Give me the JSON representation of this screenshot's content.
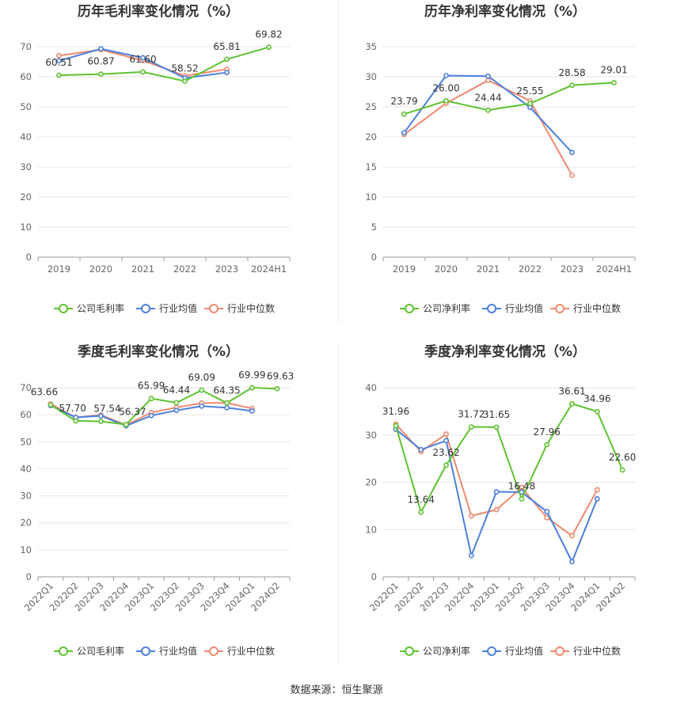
{
  "source": "数据来源：恒生聚源",
  "legend_colors": [
    "#5ec230",
    "#4d7fdc",
    "#f0896e"
  ],
  "chart_data": [
    {
      "type": "line",
      "title": "历年毛利率变化情况（%）",
      "categories": [
        "2019",
        "2020",
        "2021",
        "2022",
        "2023",
        "2024H1"
      ],
      "ylim": [
        0,
        70
      ],
      "yticks": [
        "0",
        "10",
        "20",
        "30",
        "40",
        "50",
        "60",
        "70"
      ],
      "grid": true,
      "legend_position": "bottom",
      "series": [
        {
          "name": "公司毛利率",
          "color": "#5ec230",
          "values": [
            60.51,
            60.87,
            61.6,
            58.52,
            65.81,
            69.82
          ],
          "labels": [
            "60.51",
            "60.87",
            "61.60",
            "58.52",
            "65.81",
            "69.82"
          ]
        },
        {
          "name": "行业均值",
          "color": "#4d7fdc",
          "values": [
            65.3,
            69.3,
            66.3,
            59.6,
            61.4,
            null
          ],
          "labels": []
        },
        {
          "name": "行业中位数",
          "color": "#f0896e",
          "values": [
            67.0,
            69.0,
            65.4,
            60.3,
            62.5,
            null
          ],
          "labels": []
        }
      ]
    },
    {
      "type": "line",
      "title": "历年净利率变化情况（%）",
      "categories": [
        "2019",
        "2020",
        "2021",
        "2022",
        "2023",
        "2024H1"
      ],
      "ylim": [
        0,
        35
      ],
      "yticks": [
        "0",
        "5",
        "10",
        "15",
        "20",
        "25",
        "30",
        "35"
      ],
      "grid": true,
      "legend_position": "bottom",
      "series": [
        {
          "name": "公司净利率",
          "color": "#5ec230",
          "values": [
            23.79,
            26.0,
            24.44,
            25.55,
            28.58,
            29.01
          ],
          "labels": [
            "23.79",
            "26.00",
            "24.44",
            "25.55",
            "28.58",
            "29.01"
          ]
        },
        {
          "name": "行业均值",
          "color": "#4d7fdc",
          "values": [
            20.7,
            30.2,
            30.1,
            24.9,
            17.4,
            null
          ],
          "labels": []
        },
        {
          "name": "行业中位数",
          "color": "#f0896e",
          "values": [
            20.4,
            25.6,
            29.4,
            26.0,
            13.6,
            null
          ],
          "labels": []
        }
      ]
    },
    {
      "type": "line",
      "title": "季度毛利率变化情况（%）",
      "categories": [
        "2022Q1",
        "2022Q2",
        "2022Q3",
        "2022Q4",
        "2023Q1",
        "2023Q2",
        "2023Q3",
        "2023Q4",
        "2024Q1",
        "2024Q2"
      ],
      "ylim": [
        0,
        70
      ],
      "yticks": [
        "0",
        "10",
        "20",
        "30",
        "40",
        "50",
        "60",
        "70"
      ],
      "grid": true,
      "legend_position": "bottom",
      "series": [
        {
          "name": "公司毛利率",
          "color": "#5ec230",
          "values": [
            63.66,
            57.7,
            57.54,
            56.37,
            65.99,
            64.44,
            69.09,
            64.35,
            69.99,
            69.63
          ],
          "labels": [
            "63.66",
            "57.70",
            "57.54",
            "56.37",
            "65.99",
            "64.44",
            "69.09",
            "64.35",
            "69.99",
            "69.63"
          ]
        },
        {
          "name": "行业均值",
          "color": "#4d7fdc",
          "values": [
            63.4,
            59.0,
            59.6,
            55.9,
            59.7,
            61.6,
            63.2,
            62.6,
            61.4,
            null
          ],
          "labels": []
        },
        {
          "name": "行业中位数",
          "color": "#f0896e",
          "values": [
            64.0,
            59.0,
            59.9,
            56.2,
            60.8,
            62.7,
            64.3,
            64.4,
            62.3,
            null
          ],
          "labels": []
        }
      ]
    },
    {
      "type": "line",
      "title": "季度净利率变化情况（%）",
      "categories": [
        "2022Q1",
        "2022Q2",
        "2022Q3",
        "2022Q4",
        "2023Q1",
        "2023Q2",
        "2023Q3",
        "2023Q4",
        "2024Q1",
        "2024Q2"
      ],
      "ylim": [
        0,
        40
      ],
      "yticks": [
        "0",
        "10",
        "20",
        "30",
        "40"
      ],
      "grid": true,
      "legend_position": "bottom",
      "series": [
        {
          "name": "公司净利率",
          "color": "#5ec230",
          "values": [
            31.96,
            13.64,
            23.62,
            31.72,
            31.65,
            16.48,
            27.96,
            36.61,
            34.96,
            22.6
          ],
          "labels": [
            "31.96",
            "13.64",
            "23.62",
            "31.72",
            "31.65",
            "16.48",
            "27.96",
            "36.61",
            "34.96",
            "22.60"
          ]
        },
        {
          "name": "行业均值",
          "color": "#4d7fdc",
          "values": [
            31.2,
            26.9,
            28.8,
            4.5,
            18.0,
            17.9,
            13.8,
            3.2,
            16.5,
            null
          ],
          "labels": []
        },
        {
          "name": "行业中位数",
          "color": "#f0896e",
          "values": [
            32.3,
            26.5,
            30.2,
            12.9,
            14.2,
            18.9,
            12.5,
            8.7,
            18.4,
            null
          ],
          "labels": []
        }
      ]
    }
  ]
}
